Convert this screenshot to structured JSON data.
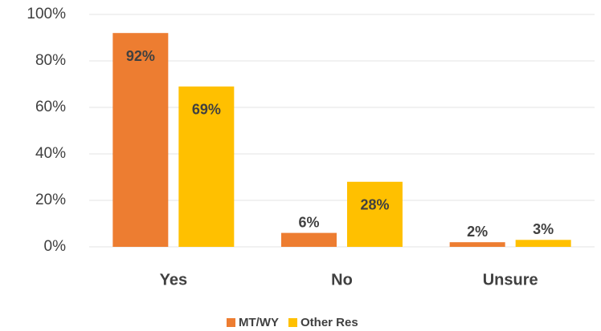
{
  "chart_data": {
    "type": "bar",
    "categories": [
      "Yes",
      "No",
      "Unsure"
    ],
    "series": [
      {
        "name": "MT/WY",
        "color": "#ed7d31",
        "values": [
          92,
          6,
          2
        ],
        "value_labels": [
          "92%",
          "6%",
          "2%"
        ]
      },
      {
        "name": "Other Res",
        "color": "#ffc000",
        "values": [
          69,
          28,
          3
        ],
        "value_labels": [
          "69%",
          "28%",
          "3%"
        ]
      }
    ],
    "ylim": [
      0,
      100
    ],
    "yticks": [
      {
        "value": 0,
        "label": "0%"
      },
      {
        "value": 20,
        "label": "20%"
      },
      {
        "value": 40,
        "label": "40%"
      },
      {
        "value": 60,
        "label": "60%"
      },
      {
        "value": 80,
        "label": "80%"
      },
      {
        "value": 100,
        "label": "100%"
      }
    ],
    "grid": true,
    "legend": "bottom"
  }
}
